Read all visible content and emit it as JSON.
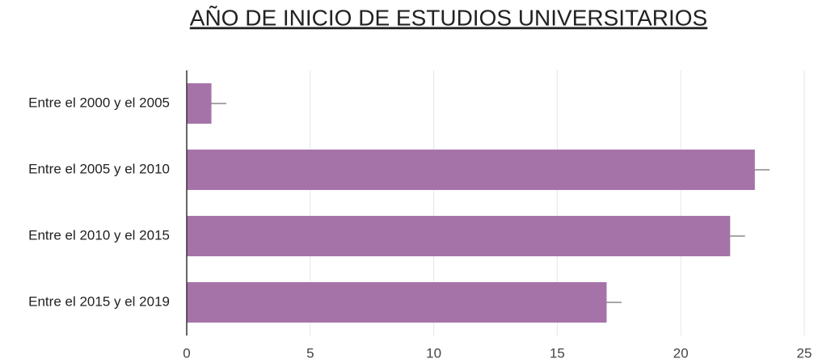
{
  "chart_data": {
    "type": "bar",
    "orientation": "horizontal",
    "title": "AÑO DE INICIO DE ESTUDIOS UNIVERSITARIOS",
    "categories": [
      "Entre el 2000 y el 2005",
      "Entre el 2005 y el 2010",
      "Entre el 2010 y el 2015",
      "Entre el 2015 y el 2019"
    ],
    "values": [
      1,
      23,
      22,
      17
    ],
    "errors": [
      0.6,
      0.6,
      0.6,
      0.6
    ],
    "color": "#a673a9",
    "error_color": "#999999",
    "xlim": [
      0,
      25
    ],
    "xticks": [
      0,
      5,
      10,
      15,
      20,
      25
    ],
    "grid": true
  }
}
